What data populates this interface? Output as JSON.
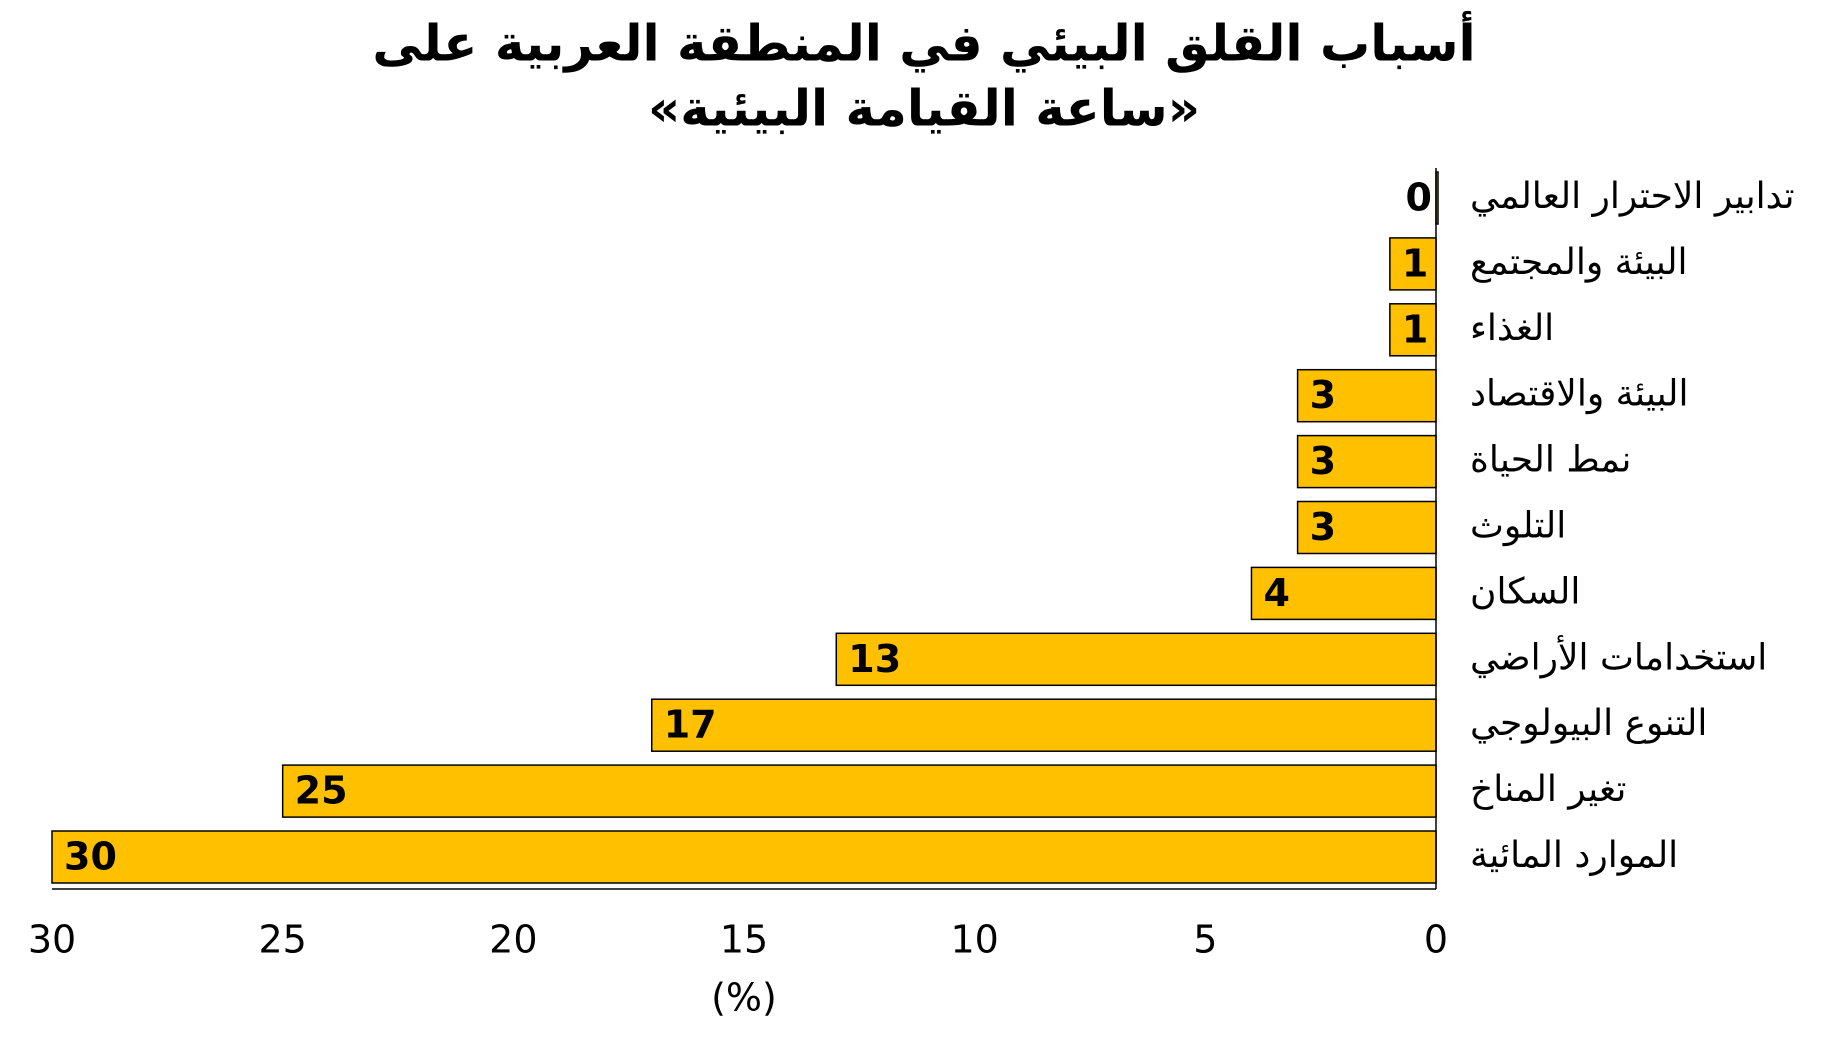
{
  "chart_data": {
    "type": "hbar",
    "title": [
      "أسباب القلق البيئي في المنطقة العربية على",
      "«ساعة القيامة البيئية»"
    ],
    "categories": [
      "تدابير الاحترار العالمي",
      "البيئة والمجتمع",
      "الغذاء",
      "البيئة والاقتصاد",
      "نمط الحياة",
      "التلوث",
      "السكان",
      "استخدامات الأراضي",
      "التنوع البيولوجي",
      "تغير المناخ",
      "الموارد المائية"
    ],
    "values": [
      0,
      1,
      1,
      3,
      3,
      3,
      4,
      13,
      17,
      25,
      30
    ],
    "color": "#FFC000",
    "xlim": [
      30,
      0
    ],
    "xticks": [
      30,
      25,
      20,
      15,
      10,
      5,
      0
    ],
    "x_label": "(%)"
  }
}
